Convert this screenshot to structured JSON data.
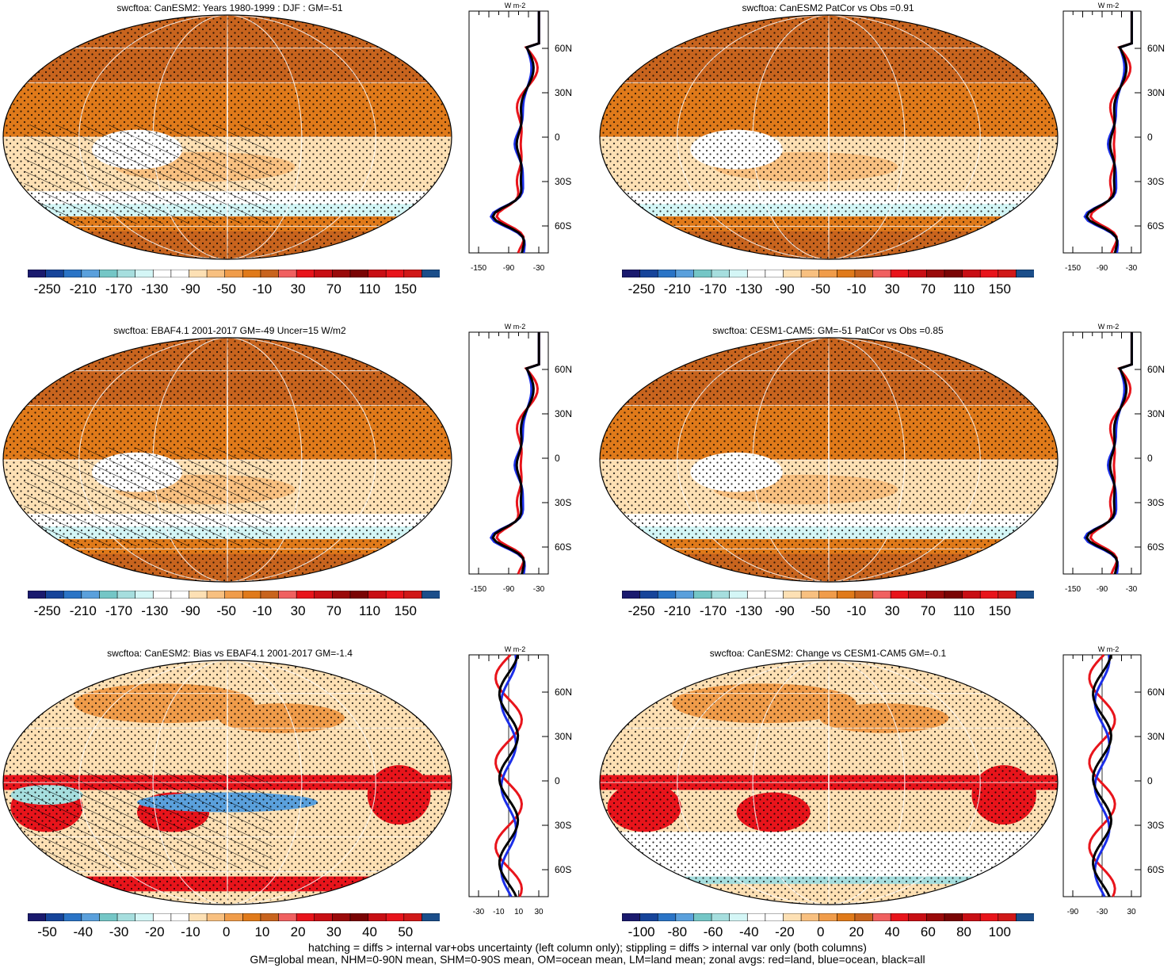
{
  "panels": [
    {
      "title": "swcftoa: CanESM2: Years 1980-1999 : DJF : GM=-51",
      "cbar_labels": [
        "-250",
        "-210",
        "-170",
        "-130",
        "-90",
        "-50",
        "-10",
        "30",
        "70",
        "110",
        "150"
      ],
      "zonal_xticks": [
        "-150",
        "-90",
        "-30"
      ],
      "zonal_unit": "W m-2",
      "hatch": true,
      "palette": "abs"
    },
    {
      "title": "swcftoa: CanESM2 PatCor vs Obs =0.91",
      "cbar_labels": [
        "-250",
        "-210",
        "-170",
        "-130",
        "-90",
        "-50",
        "-10",
        "30",
        "70",
        "110",
        "150"
      ],
      "zonal_xticks": [
        "-150",
        "-90",
        "-30"
      ],
      "zonal_unit": "W m-2",
      "hatch": false,
      "palette": "abs"
    },
    {
      "title": "swcftoa: EBAF4.1 2001-2017 GM=-49 Uncer=15 W/m2",
      "cbar_labels": [
        "-250",
        "-210",
        "-170",
        "-130",
        "-90",
        "-50",
        "-10",
        "30",
        "70",
        "110",
        "150"
      ],
      "zonal_xticks": [
        "-150",
        "-90",
        "-30"
      ],
      "zonal_unit": "W m-2",
      "hatch": true,
      "palette": "abs"
    },
    {
      "title": "swcftoa: CESM1-CAM5: GM=-51 PatCor vs Obs =0.85",
      "cbar_labels": [
        "-250",
        "-210",
        "-170",
        "-130",
        "-90",
        "-50",
        "-10",
        "30",
        "70",
        "110",
        "150"
      ],
      "zonal_xticks": [
        "-150",
        "-90",
        "-30"
      ],
      "zonal_unit": "W m-2",
      "hatch": false,
      "palette": "abs"
    },
    {
      "title": "swcftoa: CanESM2: Bias vs EBAF4.1 2001-2017 GM=-1.4",
      "cbar_labels": [
        "-50",
        "-40",
        "-30",
        "-20",
        "-10",
        "0",
        "10",
        "20",
        "30",
        "40",
        "50"
      ],
      "zonal_xticks": [
        "-30",
        "-10",
        "10",
        "30"
      ],
      "zonal_unit": "W m-2",
      "hatch": true,
      "palette": "diff"
    },
    {
      "title": "swcftoa: CanESM2: Change vs CESM1-CAM5 GM=-0.1",
      "cbar_labels": [
        "-100",
        "-80",
        "-60",
        "-40",
        "-20",
        "0",
        "20",
        "40",
        "60",
        "80",
        "100"
      ],
      "zonal_xticks": [
        "-90",
        "-30",
        "30"
      ],
      "zonal_unit": "W m-2",
      "hatch": false,
      "palette": "diff"
    }
  ],
  "lat_labels": [
    "60N",
    "30N",
    "0",
    "30S",
    "60S"
  ],
  "legend_colors": {
    "land": "#e8141b",
    "ocean": "#1b2ee8",
    "all": "#000000"
  },
  "palette_colors": [
    "#1a1a6e",
    "#16449a",
    "#2a74c6",
    "#5aa0dc",
    "#74c6c6",
    "#a6dede",
    "#d4f6f6",
    "#ffffff",
    "#ffffff",
    "#fde0b4",
    "#f8c080",
    "#f09c4a",
    "#e07a1a",
    "#c8641e",
    "#f06060",
    "#e8141b",
    "#c80e14",
    "#9a0a0a",
    "#7a0404",
    "#c80e14",
    "#e8141b",
    "#d01818",
    "#1b4e8a"
  ],
  "footer": {
    "line1": "hatching = diffs > internal var+obs uncertainty (left column only); stippling = diffs > internal var only (both columns)",
    "line2": "GM=global mean, NHM=0-90N mean, SHM=0-90S mean, OM=ocean mean, LM=land mean; zonal avgs: red=land, blue=ocean, black=all"
  }
}
